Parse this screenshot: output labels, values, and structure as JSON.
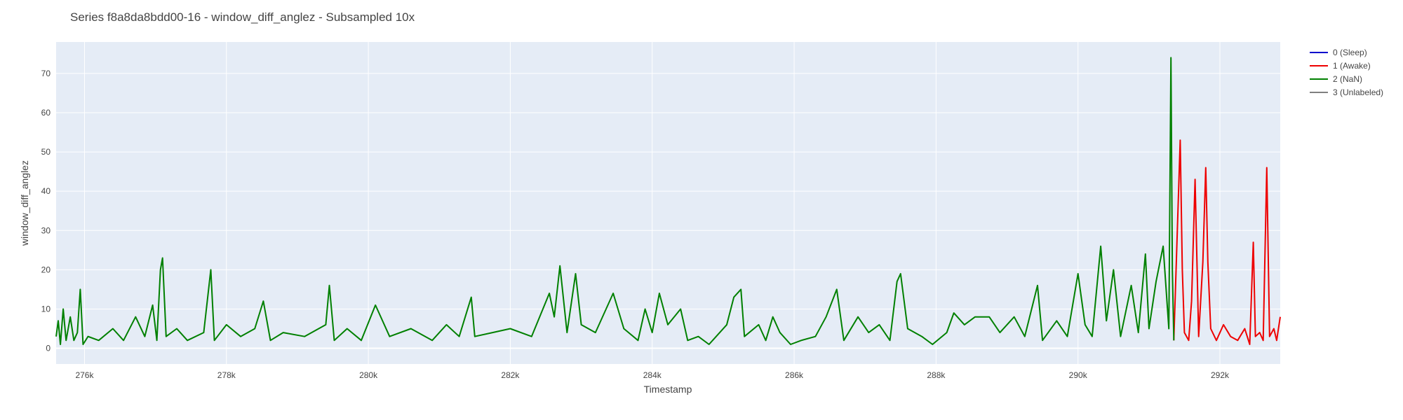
{
  "chart_data": {
    "type": "line",
    "title": "Series f8a8da8bdd00-16 - window_diff_anglez - Subsampled 10x",
    "xlabel": "Timestamp",
    "ylabel": "window_diff_anglez",
    "xlim": [
      275600,
      292850
    ],
    "ylim": [
      -4,
      78
    ],
    "x_ticks": [
      276000,
      278000,
      280000,
      282000,
      284000,
      286000,
      288000,
      290000,
      292000
    ],
    "x_tick_labels": [
      "276k",
      "278k",
      "280k",
      "282k",
      "284k",
      "286k",
      "288k",
      "290k",
      "292k"
    ],
    "y_ticks": [
      0,
      10,
      20,
      30,
      40,
      50,
      60,
      70
    ],
    "y_tick_labels": [
      "0",
      "10",
      "20",
      "30",
      "40",
      "50",
      "60",
      "70"
    ],
    "grid": true,
    "legend_position": "top-right",
    "plot_background": "#e5ecf6",
    "series": [
      {
        "name": "0 (Sleep)",
        "color": "#0000cc",
        "points": []
      },
      {
        "name": "1 (Awake)",
        "color": "#ee0000",
        "points": [
          [
            291350,
            2
          ],
          [
            291400,
            30
          ],
          [
            291440,
            53
          ],
          [
            291470,
            20
          ],
          [
            291500,
            4
          ],
          [
            291560,
            2
          ],
          [
            291600,
            12
          ],
          [
            291650,
            43
          ],
          [
            291700,
            3
          ],
          [
            291760,
            22
          ],
          [
            291800,
            46
          ],
          [
            291830,
            22
          ],
          [
            291870,
            5
          ],
          [
            291950,
            2
          ],
          [
            292050,
            6
          ],
          [
            292150,
            3
          ],
          [
            292250,
            2
          ],
          [
            292350,
            5
          ],
          [
            292420,
            1
          ],
          [
            292470,
            27
          ],
          [
            292500,
            3
          ],
          [
            292560,
            4
          ],
          [
            292610,
            2
          ],
          [
            292660,
            46
          ],
          [
            292700,
            3
          ],
          [
            292760,
            5
          ],
          [
            292800,
            2
          ],
          [
            292850,
            8
          ]
        ]
      },
      {
        "name": "2 (NaN)",
        "color": "#008000",
        "points": [
          [
            275600,
            3
          ],
          [
            275630,
            7
          ],
          [
            275660,
            1
          ],
          [
            275700,
            10
          ],
          [
            275740,
            2
          ],
          [
            275800,
            8
          ],
          [
            275850,
            2
          ],
          [
            275900,
            4
          ],
          [
            275940,
            15
          ],
          [
            275980,
            1
          ],
          [
            276050,
            3
          ],
          [
            276200,
            2
          ],
          [
            276400,
            5
          ],
          [
            276550,
            2
          ],
          [
            276720,
            8
          ],
          [
            276850,
            3
          ],
          [
            276960,
            11
          ],
          [
            277020,
            2
          ],
          [
            277070,
            20
          ],
          [
            277100,
            23
          ],
          [
            277150,
            3
          ],
          [
            277300,
            5
          ],
          [
            277450,
            2
          ],
          [
            277680,
            4
          ],
          [
            277780,
            20
          ],
          [
            277830,
            2
          ],
          [
            278000,
            6
          ],
          [
            278200,
            3
          ],
          [
            278400,
            5
          ],
          [
            278520,
            12
          ],
          [
            278620,
            2
          ],
          [
            278800,
            4
          ],
          [
            279100,
            3
          ],
          [
            279400,
            6
          ],
          [
            279450,
            16
          ],
          [
            279520,
            2
          ],
          [
            279700,
            5
          ],
          [
            279900,
            2
          ],
          [
            280100,
            11
          ],
          [
            280300,
            3
          ],
          [
            280600,
            5
          ],
          [
            280900,
            2
          ],
          [
            281100,
            6
          ],
          [
            281280,
            3
          ],
          [
            281450,
            13
          ],
          [
            281500,
            3
          ],
          [
            281750,
            4
          ],
          [
            282000,
            5
          ],
          [
            282300,
            3
          ],
          [
            282550,
            14
          ],
          [
            282620,
            8
          ],
          [
            282700,
            21
          ],
          [
            282800,
            4
          ],
          [
            282920,
            19
          ],
          [
            283000,
            6
          ],
          [
            283200,
            4
          ],
          [
            283450,
            14
          ],
          [
            283600,
            5
          ],
          [
            283800,
            2
          ],
          [
            283900,
            10
          ],
          [
            284000,
            4
          ],
          [
            284100,
            14
          ],
          [
            284220,
            6
          ],
          [
            284400,
            10
          ],
          [
            284500,
            2
          ],
          [
            284650,
            3
          ],
          [
            284800,
            1
          ],
          [
            285050,
            6
          ],
          [
            285150,
            13
          ],
          [
            285250,
            15
          ],
          [
            285300,
            3
          ],
          [
            285500,
            6
          ],
          [
            285600,
            2
          ],
          [
            285700,
            8
          ],
          [
            285800,
            4
          ],
          [
            285950,
            1
          ],
          [
            286100,
            2
          ],
          [
            286300,
            3
          ],
          [
            286450,
            8
          ],
          [
            286600,
            15
          ],
          [
            286700,
            2
          ],
          [
            286900,
            8
          ],
          [
            287050,
            4
          ],
          [
            287200,
            6
          ],
          [
            287350,
            2
          ],
          [
            287450,
            17
          ],
          [
            287500,
            19
          ],
          [
            287600,
            5
          ],
          [
            287800,
            3
          ],
          [
            287950,
            1
          ],
          [
            288150,
            4
          ],
          [
            288250,
            9
          ],
          [
            288400,
            6
          ],
          [
            288550,
            8
          ],
          [
            288750,
            8
          ],
          [
            288900,
            4
          ],
          [
            289100,
            8
          ],
          [
            289250,
            3
          ],
          [
            289430,
            16
          ],
          [
            289500,
            2
          ],
          [
            289700,
            7
          ],
          [
            289850,
            3
          ],
          [
            290000,
            19
          ],
          [
            290100,
            6
          ],
          [
            290200,
            3
          ],
          [
            290320,
            26
          ],
          [
            290400,
            7
          ],
          [
            290500,
            20
          ],
          [
            290600,
            3
          ],
          [
            290750,
            16
          ],
          [
            290850,
            4
          ],
          [
            290950,
            24
          ],
          [
            291000,
            5
          ],
          [
            291100,
            17
          ],
          [
            291200,
            26
          ],
          [
            291280,
            5
          ],
          [
            291310,
            74
          ],
          [
            291330,
            20
          ],
          [
            291350,
            2
          ]
        ]
      },
      {
        "name": "3 (Unlabeled)",
        "color": "#808080",
        "points": []
      }
    ]
  }
}
